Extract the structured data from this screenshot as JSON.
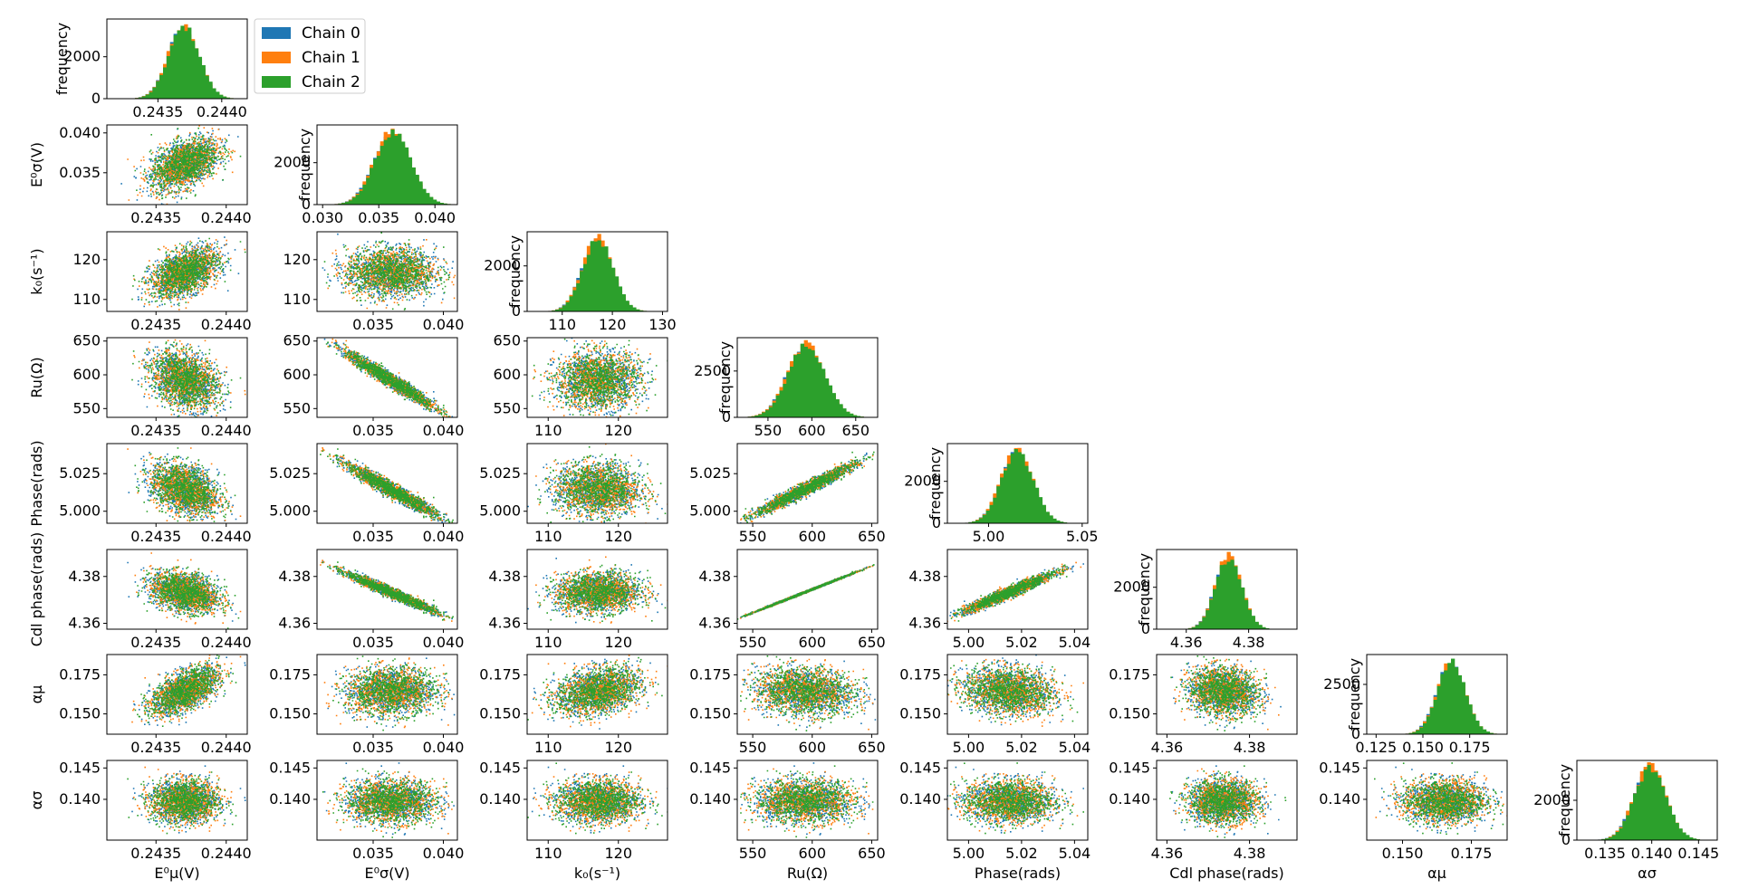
{
  "chart_data": {
    "type": "scatter",
    "layout": "corner-plot",
    "colors": {
      "Chain 0": "#1f77b4",
      "Chain 1": "#ff7f0e",
      "Chain 2": "#2ca02c"
    },
    "legend": {
      "placement": "top-left",
      "entries": [
        "Chain 0",
        "Chain 1",
        "Chain 2"
      ]
    },
    "diag_ylabel": "frequency",
    "params": [
      {
        "name": "E0mu",
        "mean": 0.2437,
        "std": 0.00012,
        "scatter_range": [
          0.24315,
          0.24415
        ],
        "hist_range": [
          0.2431,
          0.2442
        ],
        "ticks": [
          0.2435,
          0.244
        ],
        "tick_labels": [
          "0.2435",
          "0.2440"
        ],
        "hist_yticks": [
          0,
          2000
        ],
        "hist_ymax": 3800,
        "hist_ytick_labels": [
          "0",
          "2000"
        ]
      },
      {
        "name": "E0sigma",
        "mean": 0.0362,
        "std": 0.0016,
        "scatter_range": [
          0.031,
          0.041
        ],
        "hist_range": [
          0.0295,
          0.042
        ],
        "ticks": [
          0.035,
          0.04
        ],
        "tick_labels": [
          "0.035",
          "0.040"
        ],
        "hist_ticks": [
          0.03,
          0.035,
          0.04
        ],
        "hist_tick_labels": [
          "0.030",
          "0.035",
          "0.040"
        ],
        "hist_yticks": [
          0,
          2000
        ],
        "hist_ymax": 3800,
        "hist_ytick_labels": [
          "0",
          "2000"
        ],
        "scatter_yticks": [
          0.035,
          0.04
        ],
        "scatter_ytick_labels": [
          "0.035",
          "0.040"
        ]
      },
      {
        "name": "k0",
        "mean": 117,
        "std": 3.0,
        "scatter_range": [
          107,
          127
        ],
        "hist_range": [
          103,
          131
        ],
        "ticks": [
          110,
          120
        ],
        "tick_labels": [
          "110",
          "120"
        ],
        "hist_ticks": [
          110,
          120,
          130
        ],
        "hist_tick_labels": [
          "110",
          "120",
          "130"
        ],
        "hist_yticks": [
          0,
          2000
        ],
        "hist_ymax": 3500,
        "hist_ytick_labels": [
          "0",
          "2000"
        ]
      },
      {
        "name": "Ru",
        "mean": 593,
        "std": 21,
        "scatter_range": [
          537,
          655
        ],
        "hist_range": [
          515,
          675
        ],
        "ticks": [
          550,
          600,
          650
        ],
        "tick_labels": [
          "550",
          "600",
          "650"
        ],
        "hist_yticks": [
          0,
          2500
        ],
        "hist_ymax": 4300,
        "hist_ytick_labels": [
          "0",
          "2500"
        ],
        "scatter_yticks": [
          550,
          600,
          650
        ],
        "scatter_ytick_labels": [
          "550",
          "600",
          "650"
        ]
      },
      {
        "name": "Phase",
        "mean": 5.015,
        "std": 0.0085,
        "scatter_range": [
          4.992,
          5.045
        ],
        "hist_range": [
          4.978,
          5.053
        ],
        "ticks": [
          5.0,
          5.02,
          5.04
        ],
        "tick_labels": [
          "5.00",
          "5.02",
          "5.04"
        ],
        "hist_ticks": [
          5.0,
          5.05
        ],
        "hist_tick_labels": [
          "5.00",
          "5.05"
        ],
        "hist_yticks": [
          0,
          2000
        ],
        "hist_ymax": 3800,
        "hist_ytick_labels": [
          "0",
          "2000"
        ],
        "scatter_yticks": [
          5.0,
          5.025
        ],
        "scatter_ytick_labels": [
          "5.000",
          "5.025"
        ]
      },
      {
        "name": "Cdl_phase",
        "mean": 4.3735,
        "std": 0.0042,
        "scatter_range": [
          4.3575,
          4.3915
        ],
        "hist_range": [
          4.3505,
          4.3955
        ],
        "ticks": [
          4.36,
          4.38
        ],
        "tick_labels": [
          "4.36",
          "4.38"
        ],
        "hist_ticks": [
          4.36,
          4.38
        ],
        "hist_tick_labels": [
          "4.36",
          "4.38"
        ],
        "hist_yticks": [
          0,
          2000
        ],
        "hist_ymax": 3800,
        "hist_ytick_labels": [
          "0",
          "2000"
        ],
        "scatter_yticks": [
          4.36,
          4.38
        ],
        "scatter_ytick_labels": [
          "4.36",
          "4.38"
        ]
      },
      {
        "name": "alpha_mu",
        "mean": 0.165,
        "std": 0.0075,
        "scatter_range": [
          0.137,
          0.188
        ],
        "hist_range": [
          0.12,
          0.195
        ],
        "ticks": [
          0.15,
          0.175
        ],
        "tick_labels": [
          "0.150",
          "0.175"
        ],
        "hist_ticks": [
          0.125,
          0.15,
          0.175
        ],
        "hist_tick_labels": [
          "0.125",
          "0.150",
          "0.175"
        ],
        "hist_yticks": [
          0,
          2500
        ],
        "hist_ymax": 4000,
        "hist_ytick_labels": [
          "0",
          "2500"
        ],
        "scatter_yticks": [
          0.15,
          0.175
        ],
        "scatter_ytick_labels": [
          "0.150",
          "0.175"
        ]
      },
      {
        "name": "alpha_sigma",
        "mean": 0.1398,
        "std": 0.0017,
        "scatter_range": [
          0.1335,
          0.1462
        ],
        "hist_range": [
          0.132,
          0.147
        ],
        "ticks": [
          0.135,
          0.14,
          0.145
        ],
        "tick_labels": [
          "0.135",
          "0.140",
          "0.145"
        ],
        "hist_yticks": [
          0,
          2000
        ],
        "hist_ymax": 4000,
        "hist_ytick_labels": [
          "0",
          "2000"
        ],
        "scatter_yticks": [
          0.14,
          0.145
        ],
        "scatter_ytick_labels": [
          "0.140",
          "0.145"
        ]
      }
    ],
    "correlations": [
      [
        0,
        1,
        0.45
      ],
      [
        0,
        2,
        0.45
      ],
      [
        0,
        3,
        -0.3
      ],
      [
        0,
        4,
        -0.35
      ],
      [
        0,
        5,
        -0.3
      ],
      [
        0,
        6,
        0.6
      ],
      [
        0,
        7,
        0.0
      ],
      [
        1,
        2,
        0.0
      ],
      [
        1,
        3,
        -0.97
      ],
      [
        1,
        4,
        -0.96
      ],
      [
        1,
        5,
        -0.97
      ],
      [
        1,
        6,
        0.05
      ],
      [
        1,
        7,
        0.0
      ],
      [
        2,
        3,
        0.05
      ],
      [
        2,
        4,
        -0.05
      ],
      [
        2,
        5,
        0.05
      ],
      [
        2,
        6,
        0.3
      ],
      [
        2,
        7,
        0.0
      ],
      [
        3,
        4,
        0.97
      ],
      [
        3,
        5,
        0.999
      ],
      [
        3,
        6,
        -0.1
      ],
      [
        3,
        7,
        0.0
      ],
      [
        4,
        5,
        0.96
      ],
      [
        4,
        6,
        -0.15
      ],
      [
        4,
        7,
        0.0
      ],
      [
        5,
        6,
        -0.1
      ],
      [
        5,
        7,
        0.0
      ],
      [
        6,
        7,
        0.0
      ]
    ]
  },
  "axis_labels": {
    "x": [
      "E⁰μ(V)",
      "E⁰σ(V)",
      "k₀(s⁻¹)",
      "Ru(Ω)",
      "Phase(rads)",
      "Cdl phase(rads)",
      "αμ",
      "ασ"
    ],
    "y": [
      "frequency",
      "E⁰σ(V)",
      "k₀(s⁻¹)",
      "Ru(Ω)",
      "Phase(rads)",
      "Cdl phase(rads)",
      "αμ",
      "ασ"
    ]
  }
}
